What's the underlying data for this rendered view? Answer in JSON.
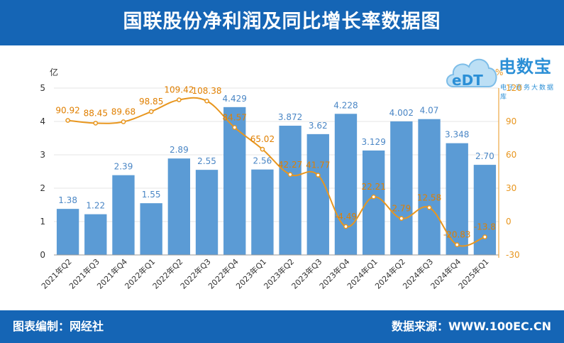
{
  "header": {
    "title": "国联股份净利润及同比增长率数据图"
  },
  "footer": {
    "left_text": "图表编制：网经社",
    "right_text": "数据来源：WWW.100EC.CN"
  },
  "logo": {
    "icon_text": "eDT",
    "name_cn": "电数宝",
    "sub_text": "电子商务大数据库"
  },
  "colors": {
    "bar": "#5b9bd5",
    "line": "#e8961e",
    "header_bg": "#1565b5",
    "axis_right": "#e8961e",
    "axis_left": "#333333"
  },
  "chart_data": {
    "type": "bar",
    "categories": [
      "2021年Q2",
      "2021年Q3",
      "2021年Q4",
      "2022年Q1",
      "2022年Q2",
      "2022年Q3",
      "2022年Q4",
      "2023年Q1",
      "2023年Q2",
      "2023年Q3",
      "2023年Q4",
      "2024年Q1",
      "2024年Q2",
      "2024年Q3",
      "2024年Q4",
      "2025年Q1"
    ],
    "series": [
      {
        "type": "bar",
        "axis": "left",
        "values": [
          1.38,
          1.22,
          2.39,
          1.55,
          2.89,
          2.55,
          4.429,
          2.56,
          3.872,
          3.62,
          4.228,
          3.129,
          4.002,
          4.07,
          3.348,
          2.7
        ],
        "labels": [
          "1.38",
          "1.22",
          "2.39",
          "1.55",
          "2.89",
          "2.55",
          "4.429",
          "2.56",
          "3.872",
          "3.62",
          "4.228",
          "3.129",
          "4.002",
          "4.07",
          "3.348",
          "2.70"
        ]
      },
      {
        "type": "line",
        "axis": "right",
        "smooth": true,
        "values": [
          90.92,
          88.45,
          89.68,
          98.85,
          109.42,
          108.38,
          84.57,
          65.02,
          42.27,
          41.77,
          -4.49,
          22.21,
          2.79,
          12.58,
          -20.83,
          -13.8
        ],
        "labels": [
          "90.92",
          "88.45",
          "89.68",
          "98.85",
          "109.42",
          "108.38",
          "84.57",
          "65.02",
          "42.27",
          "41.77",
          "-4.49",
          "22.21",
          "2.79",
          "12.58",
          "-20.83",
          "-13.8"
        ]
      }
    ],
    "left_axis": {
      "unit": "亿",
      "ylim": [
        0,
        5
      ],
      "ticks": [
        0,
        1,
        2,
        3,
        4,
        5
      ]
    },
    "right_axis": {
      "unit": "%",
      "ylim": [
        -30,
        120
      ],
      "ticks": [
        -30,
        0,
        30,
        60,
        90,
        120
      ]
    },
    "grid": true
  }
}
